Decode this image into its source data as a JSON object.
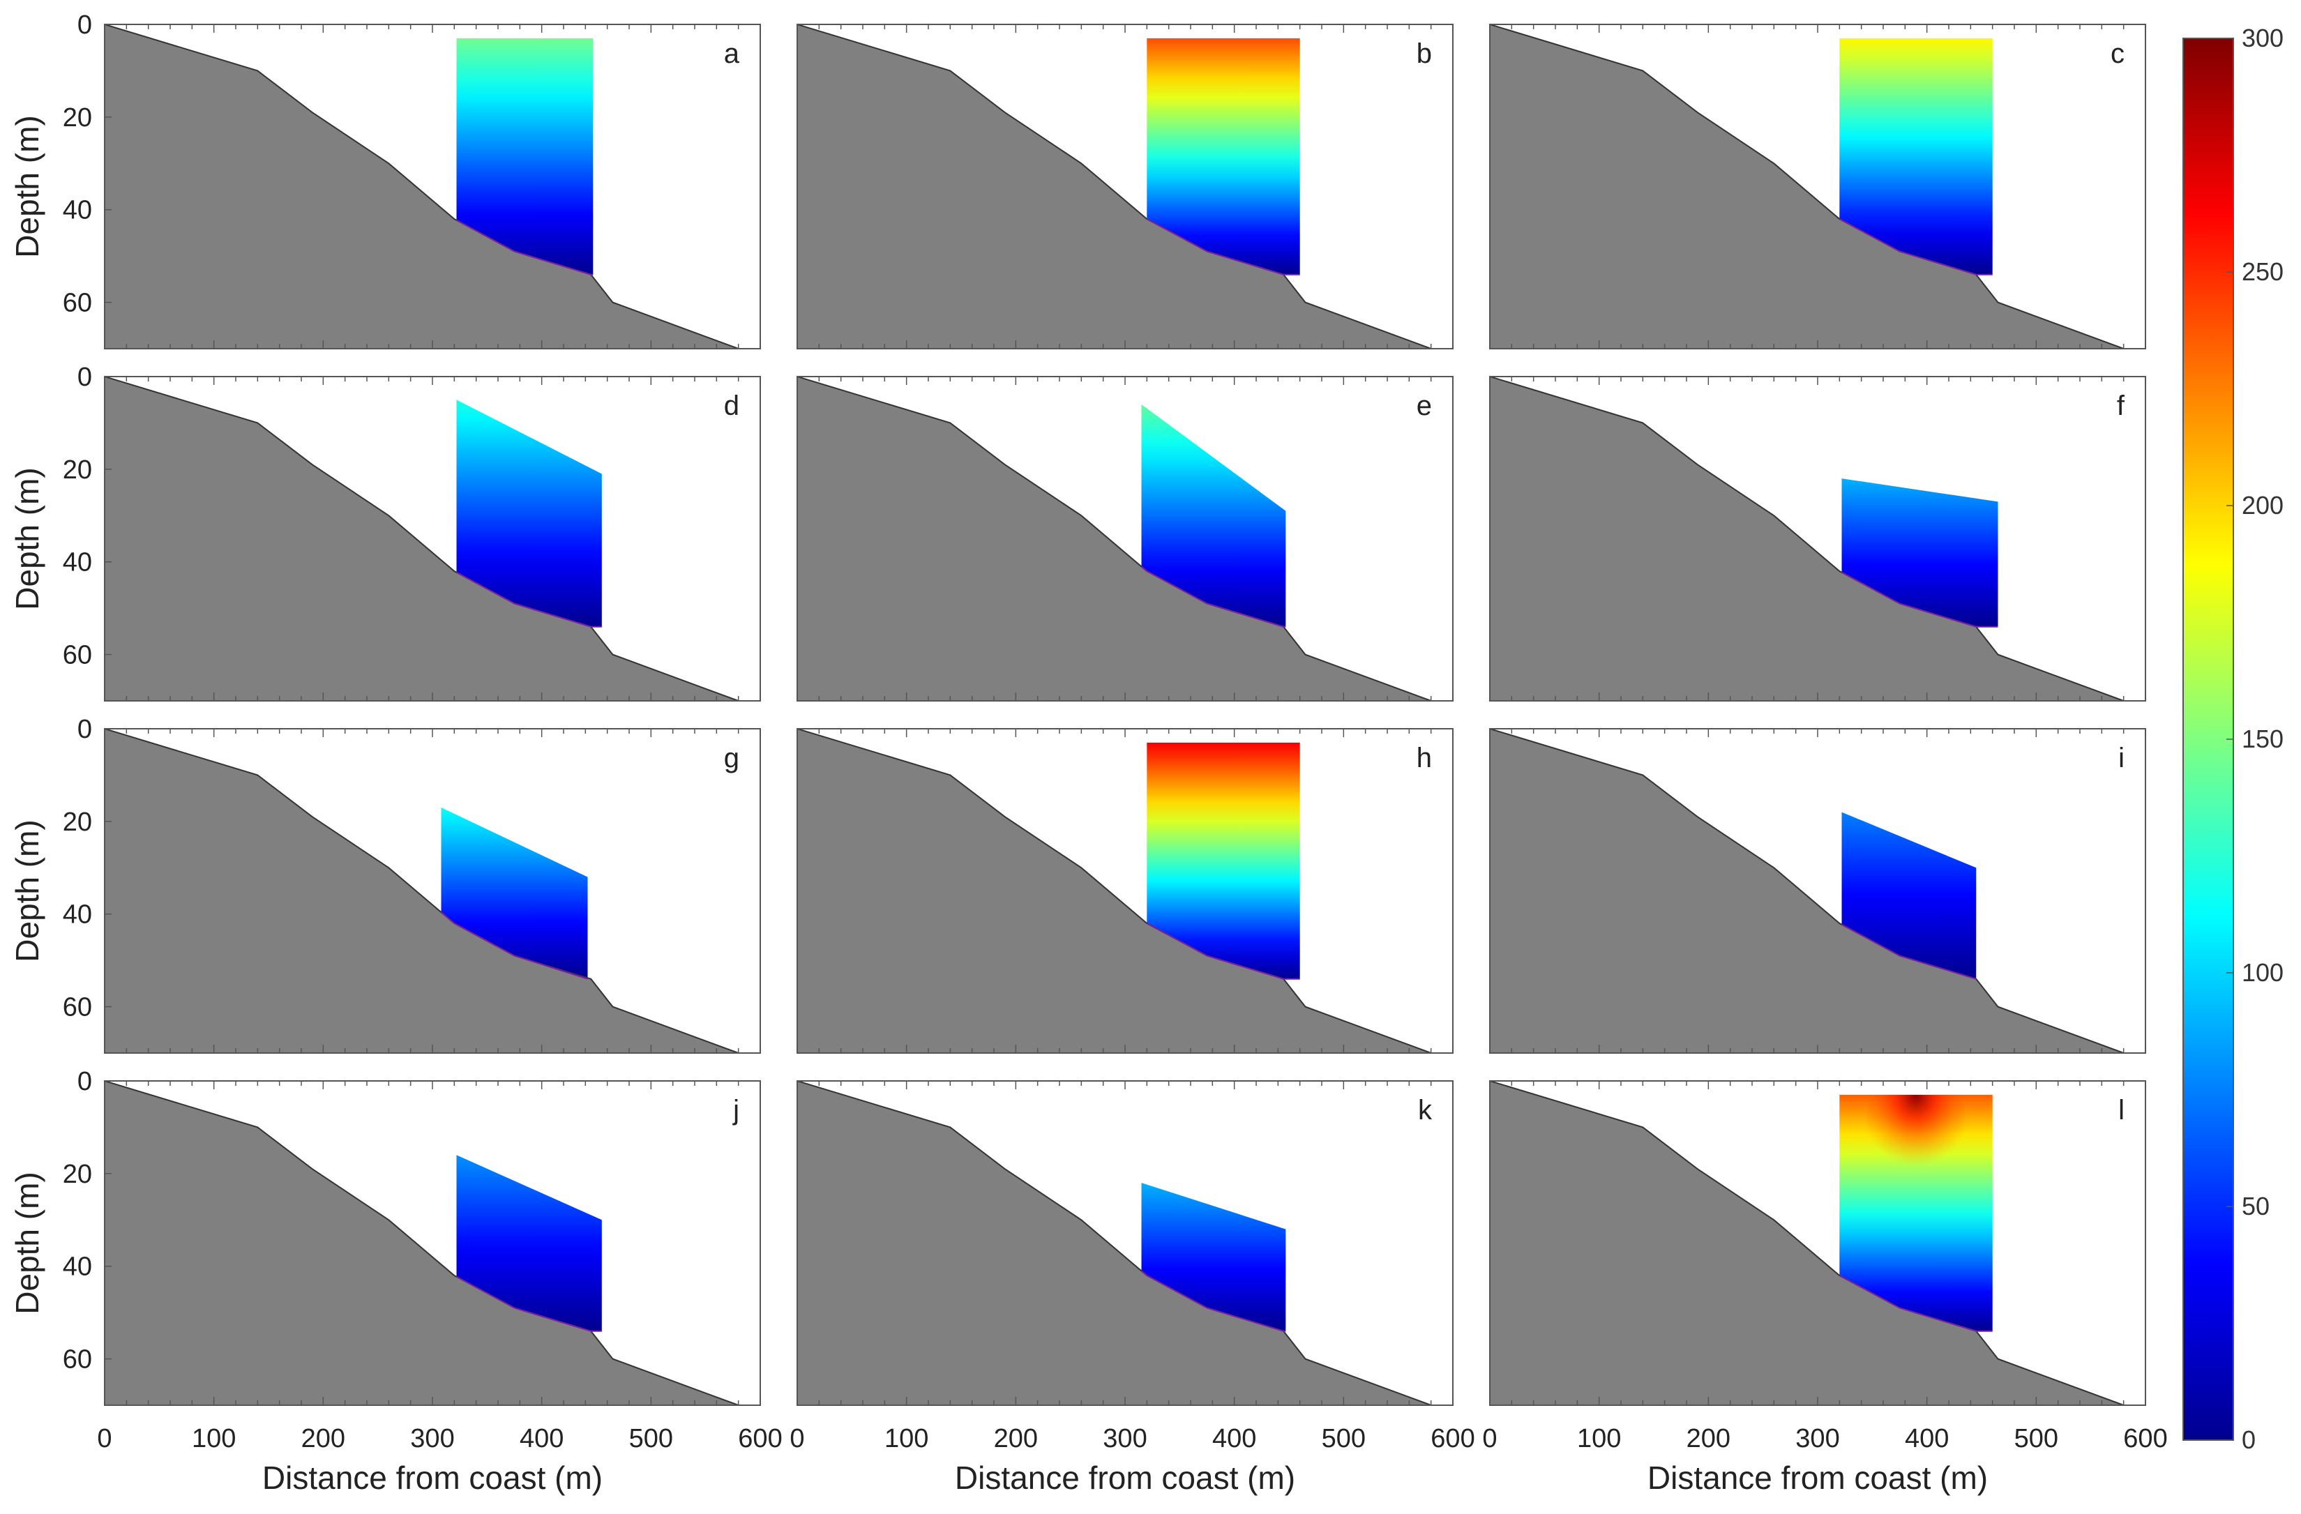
{
  "chart_data": {
    "type": "heatmap",
    "layout": "4 rows x 3 columns of section panels with a shared vertical colorbar on the right",
    "xlabel": "Distance from coast (m)",
    "ylabel": "Depth (m)",
    "xlim": [
      0,
      600
    ],
    "ylim": [
      70,
      0
    ],
    "x_ticks": [
      0,
      100,
      200,
      300,
      400,
      500,
      600
    ],
    "x_tick_labels": [
      "0",
      "100",
      "200",
      "300",
      "400",
      "500",
      "600"
    ],
    "y_ticks": [
      0,
      20,
      40,
      60
    ],
    "y_tick_labels": [
      "0",
      "20",
      "40",
      "60"
    ],
    "bathymetry": {
      "x": [
        0,
        140,
        190,
        260,
        320,
        375,
        445,
        465,
        580
      ],
      "depth": [
        0,
        10,
        19,
        30,
        42,
        49,
        54,
        60,
        70
      ]
    },
    "colorbar": {
      "range": [
        0,
        300
      ],
      "ticks": [
        0,
        50,
        100,
        150,
        200,
        250,
        300
      ],
      "tick_labels": [
        "0",
        "50",
        "100",
        "150",
        "200",
        "250",
        "300"
      ],
      "colormap": [
        "#00008f",
        "#0000ff",
        "#0080ff",
        "#00ffff",
        "#80ff80",
        "#ffff00",
        "#ff8000",
        "#ff0000",
        "#800000"
      ]
    },
    "panels": [
      {
        "label": "a",
        "x_left": 322,
        "x_right": 447,
        "top_left_depth": 3,
        "top_right_depth": 3,
        "bottom_right_depth": 54,
        "top_value": 145,
        "bottom_value": 0
      },
      {
        "label": "b",
        "x_left": 320,
        "x_right": 460,
        "top_left_depth": 3,
        "top_right_depth": 3,
        "bottom_right_depth": 54,
        "top_value": 240,
        "bottom_value": 0
      },
      {
        "label": "c",
        "x_left": 320,
        "x_right": 460,
        "top_left_depth": 3,
        "top_right_depth": 3,
        "bottom_right_depth": 54,
        "top_value": 190,
        "bottom_value": 0
      },
      {
        "label": "d",
        "x_left": 322,
        "x_right": 455,
        "top_left_depth": 5,
        "top_right_depth": 21,
        "bottom_right_depth": 54,
        "top_value": 120,
        "bottom_value": 0
      },
      {
        "label": "e",
        "x_left": 315,
        "x_right": 447,
        "top_left_depth": 6,
        "top_right_depth": 29,
        "bottom_right_depth": 54,
        "top_value": 140,
        "bottom_value": 0
      },
      {
        "label": "f",
        "x_left": 322,
        "x_right": 465,
        "top_left_depth": 22,
        "top_right_depth": 27,
        "bottom_right_depth": 54,
        "top_value": 90,
        "bottom_value": 0
      },
      {
        "label": "g",
        "x_left": 308,
        "x_right": 442,
        "top_left_depth": 17,
        "top_right_depth": 32,
        "bottom_right_depth": 54,
        "top_value": 115,
        "bottom_value": 0
      },
      {
        "label": "h",
        "x_left": 320,
        "x_right": 460,
        "top_left_depth": 3,
        "top_right_depth": 3,
        "bottom_right_depth": 54,
        "top_value": 265,
        "bottom_value": 0
      },
      {
        "label": "i",
        "x_left": 322,
        "x_right": 445,
        "top_left_depth": 18,
        "top_right_depth": 30,
        "bottom_right_depth": 54,
        "top_value": 75,
        "bottom_value": 0
      },
      {
        "label": "j",
        "x_left": 322,
        "x_right": 455,
        "top_left_depth": 16,
        "top_right_depth": 30,
        "bottom_right_depth": 54,
        "top_value": 80,
        "bottom_value": 0
      },
      {
        "label": "k",
        "x_left": 315,
        "x_right": 447,
        "top_left_depth": 22,
        "top_right_depth": 32,
        "bottom_right_depth": 54,
        "top_value": 90,
        "bottom_value": 0
      },
      {
        "label": "l",
        "x_left": 320,
        "x_right": 460,
        "top_left_depth": 3,
        "top_right_depth": 3,
        "bottom_right_depth": 54,
        "top_value": 235,
        "bottom_value": 0,
        "surface_peak_value": 300
      }
    ]
  },
  "colors": {
    "land": "#808080",
    "land_outline": "#333333",
    "frame": "#555555",
    "bottom_edge": "#7b1fa2"
  }
}
